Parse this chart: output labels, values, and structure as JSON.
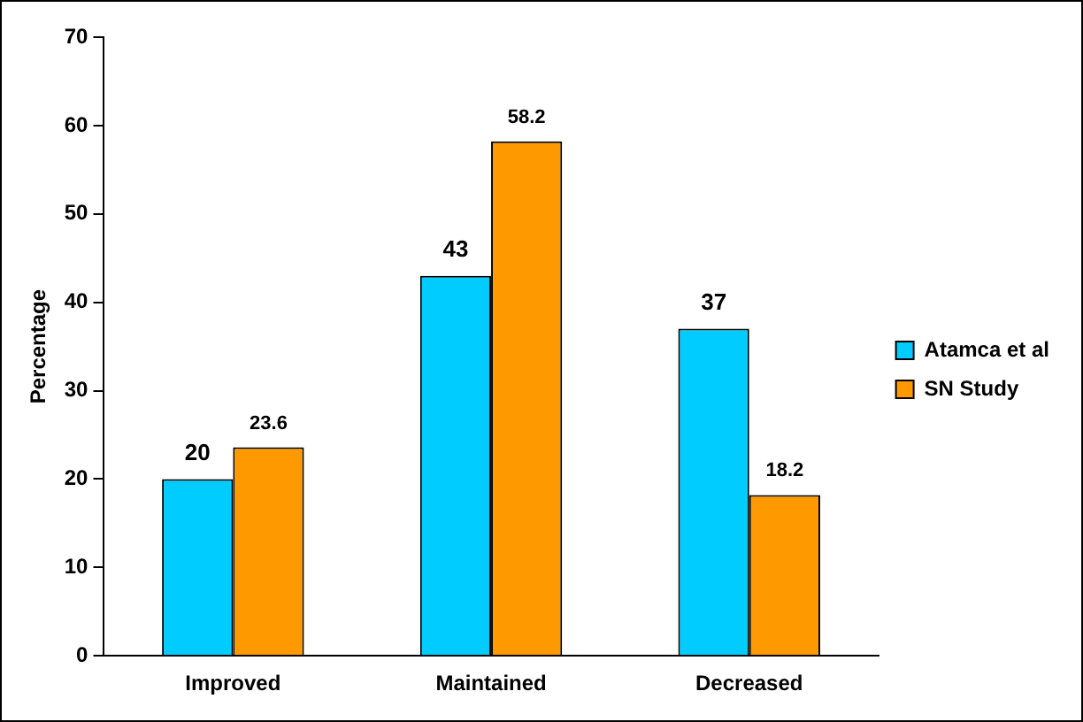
{
  "chart_data": {
    "type": "bar",
    "ylabel": "Percentage",
    "categories": [
      "Improved",
      "Maintained",
      "Decreased"
    ],
    "series": [
      {
        "name": "Atamca et al",
        "color": "#00ccff",
        "values": [
          20,
          43,
          37
        ]
      },
      {
        "name": "SN Study",
        "color": "#ff9900",
        "values": [
          23.6,
          58.2,
          18.2
        ]
      }
    ],
    "ylim": [
      0,
      70
    ],
    "yticks": [
      0,
      10,
      20,
      30,
      40,
      50,
      60,
      70
    ],
    "grid": false,
    "legend": "right",
    "data_labels": true
  }
}
